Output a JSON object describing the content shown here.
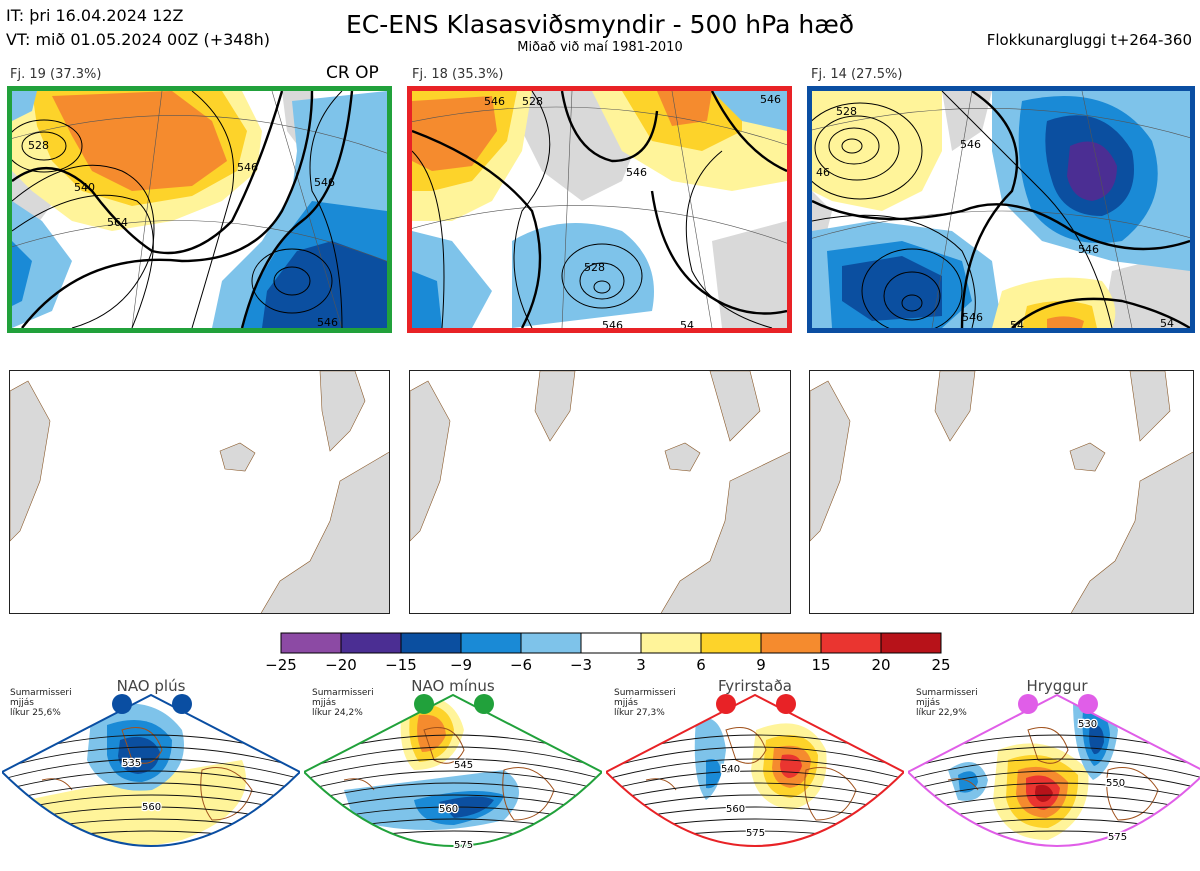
{
  "header": {
    "it_line": "IT: þri 16.04.2024 12Z",
    "vt_line": "VT: mið 01.05.2024 00Z  (+348h)",
    "title": "EC-ENS Klasasviðsmyndir - 500 hPa hæð",
    "subtitle": "Miðað við maí 1981-2010",
    "window": "Flokkunargluggi t+264-360"
  },
  "clusters": [
    {
      "label": "Fj. 19 (37.3%)",
      "border_color": "#21a13b",
      "extra": "CR OP",
      "contours": [
        "528",
        "540",
        "546",
        "564",
        "546",
        "546"
      ]
    },
    {
      "label": "Fj. 18 (35.3%)",
      "border_color": "#e82226",
      "contours": [
        "546",
        "528",
        "546",
        "546",
        "528",
        "546",
        "54"
      ]
    },
    {
      "label": "Fj. 14 (27.5%)",
      "border_color": "#0a4ea2",
      "contours": [
        "528",
        "46",
        "546",
        "546",
        "546",
        "54",
        "54"
      ]
    }
  ],
  "colorbar": {
    "ticks": [
      "−25",
      "−20",
      "−15",
      "−9",
      "−6",
      "−3",
      "3",
      "6",
      "9",
      "15",
      "20",
      "25"
    ],
    "colors": [
      "#8c4aa4",
      "#4b2e93",
      "#0b4fa0",
      "#1a8ad6",
      "#7ec3ea",
      "#ffffff",
      "#fff49a",
      "#fdd32a",
      "#f58b2e",
      "#ea3530",
      "#b71219"
    ]
  },
  "regimes": [
    {
      "name": "NAO plús",
      "season": "Sumarmisseri",
      "smoothing": "mjjás",
      "likelihood": "líkur 25,6%",
      "color": "#0a4ea2",
      "labels": [
        "535",
        "560"
      ]
    },
    {
      "name": "NAO mínus",
      "season": "Sumarmisseri",
      "smoothing": "mjjás",
      "likelihood": "líkur 24,2%",
      "color": "#21a13b",
      "labels": [
        "545",
        "560",
        "575"
      ]
    },
    {
      "name": "Fyrirstaða",
      "season": "Sumarmisseri",
      "smoothing": "mjjás",
      "likelihood": "líkur 27,3%",
      "color": "#e82226",
      "labels": [
        "540",
        "560",
        "575"
      ]
    },
    {
      "name": "Hryggur",
      "season": "Sumarmisseri",
      "smoothing": "mjjás",
      "likelihood": "líkur 22,9%",
      "color": "#e05ee8",
      "labels": [
        "530",
        "550",
        "575"
      ]
    }
  ]
}
